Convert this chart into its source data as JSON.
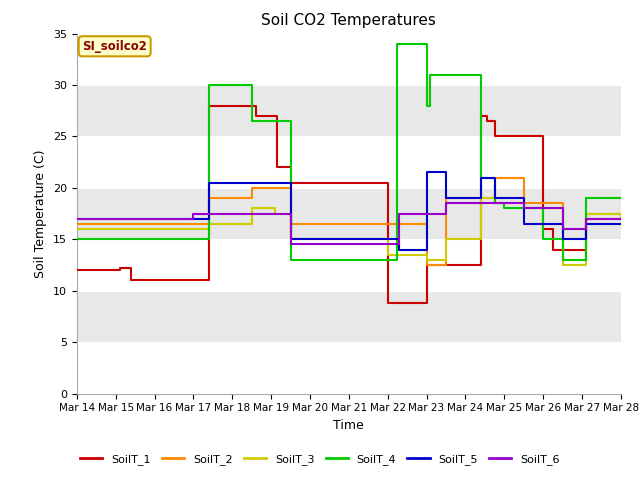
{
  "title": "Soil CO2 Temperatures",
  "xlabel": "Time",
  "ylabel": "Soil Temperature (C)",
  "xlim": [
    0,
    14
  ],
  "ylim": [
    0,
    35
  ],
  "yticks": [
    0,
    5,
    10,
    15,
    20,
    25,
    30,
    35
  ],
  "xtick_labels": [
    "Mar 14",
    "Mar 15",
    "Mar 16",
    "Mar 17",
    "Mar 18",
    "Mar 19",
    "Mar 20",
    "Mar 21",
    "Mar 22",
    "Mar 23",
    "Mar 24",
    "Mar 25",
    "Mar 26",
    "Mar 27",
    "Mar 28"
  ],
  "annotation_text": "SI_soilco2",
  "bg_color": "#e8e8e8",
  "series": {
    "SoilT_1": {
      "color": "#cc0000",
      "x": [
        0,
        0.9,
        1.1,
        1.4,
        3.0,
        3.4,
        4.6,
        5.15,
        5.5,
        7.8,
        8.0,
        8.3,
        9.0,
        9.15,
        10.4,
        10.55,
        10.75,
        11.5,
        12.0,
        12.25,
        12.5,
        13.1,
        14.0
      ],
      "y": [
        12.0,
        12.0,
        12.2,
        11.0,
        11.0,
        28.0,
        27.0,
        22.0,
        20.5,
        20.5,
        8.8,
        8.8,
        12.5,
        12.5,
        27.0,
        26.5,
        25.0,
        25.0,
        16.0,
        14.0,
        14.0,
        17.0,
        17.0
      ]
    },
    "SoilT_2": {
      "color": "#ff8c00",
      "x": [
        0,
        3.0,
        3.4,
        4.5,
        5.1,
        5.5,
        8.3,
        9.0,
        9.5,
        10.4,
        10.75,
        11.5,
        12.0,
        12.5,
        13.1,
        14.0
      ],
      "y": [
        16.5,
        16.5,
        19.0,
        20.0,
        20.0,
        16.5,
        16.5,
        12.5,
        19.0,
        19.0,
        21.0,
        18.5,
        18.5,
        13.0,
        17.5,
        17.5
      ]
    },
    "SoilT_3": {
      "color": "#cccc00",
      "x": [
        0,
        3.0,
        3.4,
        4.5,
        5.1,
        5.5,
        7.5,
        8.0,
        8.3,
        9.0,
        9.5,
        10.4,
        10.75,
        11.5,
        12.0,
        12.5,
        13.1,
        14.0
      ],
      "y": [
        16.0,
        16.0,
        16.5,
        18.0,
        17.5,
        15.0,
        15.0,
        13.5,
        13.5,
        13.0,
        15.0,
        19.0,
        18.5,
        18.0,
        18.0,
        12.5,
        17.5,
        17.0
      ]
    },
    "SoilT_4": {
      "color": "#00cc00",
      "x": [
        0,
        2.0,
        3.0,
        3.4,
        4.5,
        5.1,
        5.5,
        7.5,
        8.0,
        8.25,
        9.0,
        9.1,
        9.4,
        10.4,
        10.75,
        11.0,
        11.5,
        12.0,
        12.5,
        13.1,
        14.0
      ],
      "y": [
        15.0,
        15.0,
        15.0,
        30.0,
        26.5,
        26.5,
        13.0,
        13.0,
        13.0,
        34.0,
        28.0,
        31.0,
        31.0,
        21.0,
        18.5,
        18.0,
        18.0,
        15.0,
        13.0,
        19.0,
        19.0
      ]
    },
    "SoilT_5": {
      "color": "#0000cc",
      "x": [
        0,
        3.0,
        3.4,
        4.5,
        5.1,
        5.5,
        7.5,
        8.3,
        9.0,
        9.5,
        10.4,
        10.75,
        11.5,
        12.0,
        12.5,
        13.1,
        14.0
      ],
      "y": [
        17.0,
        17.0,
        20.5,
        20.5,
        20.5,
        15.0,
        15.0,
        14.0,
        21.5,
        19.0,
        21.0,
        19.0,
        16.5,
        16.5,
        15.0,
        16.5,
        16.5
      ]
    },
    "SoilT_6": {
      "color": "#9900cc",
      "x": [
        0,
        2.5,
        3.0,
        3.4,
        5.1,
        5.5,
        7.5,
        8.3,
        9.0,
        9.5,
        10.4,
        10.75,
        11.5,
        12.0,
        12.5,
        13.1,
        14.0
      ],
      "y": [
        17.0,
        17.0,
        17.5,
        17.5,
        17.5,
        14.5,
        14.5,
        17.5,
        17.5,
        18.5,
        18.5,
        18.5,
        18.0,
        18.0,
        16.0,
        17.0,
        17.0
      ]
    }
  }
}
